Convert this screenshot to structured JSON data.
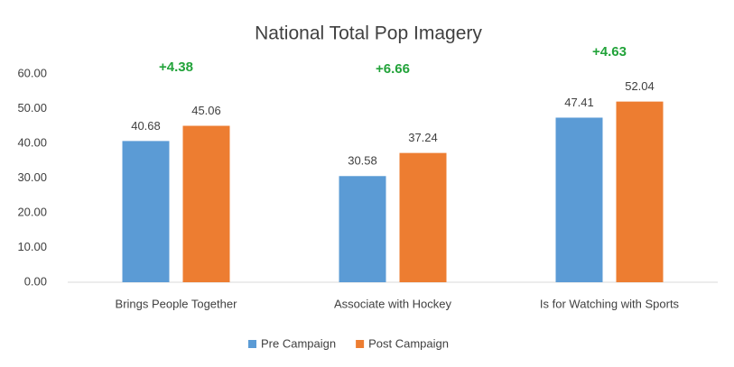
{
  "chart_data": {
    "type": "bar",
    "title": "National Total Pop Imagery",
    "categories": [
      "Brings People Together",
      "Associate with Hockey",
      "Is for Watching with Sports"
    ],
    "series": [
      {
        "name": "Pre Campaign",
        "color": "#5b9bd5",
        "values": [
          40.68,
          30.58,
          47.41
        ]
      },
      {
        "name": "Post Campaign",
        "color": "#ed7d31",
        "values": [
          45.06,
          37.24,
          52.04
        ]
      }
    ],
    "annotations": [
      "+4.38",
      "+6.66",
      "+4.63"
    ],
    "ylim": [
      0,
      60
    ],
    "yticks": [
      {
        "value": 0,
        "label": "0.00"
      },
      {
        "value": 10,
        "label": "10.00"
      },
      {
        "value": 20,
        "label": "20.00"
      },
      {
        "value": 30,
        "label": "30.00"
      },
      {
        "value": 40,
        "label": "40.00"
      },
      {
        "value": 50,
        "label": "50.00"
      },
      {
        "value": 60,
        "label": "60.00"
      }
    ],
    "grid": false,
    "legend": "bottom"
  }
}
